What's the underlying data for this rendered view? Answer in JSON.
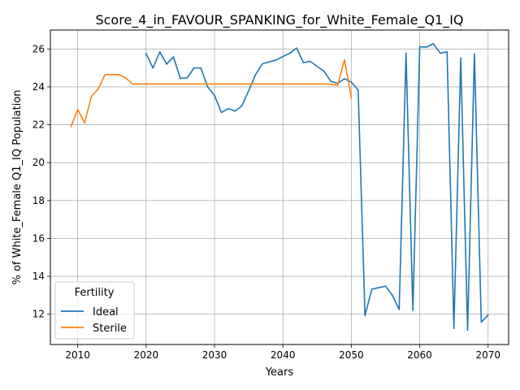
{
  "chart_data": {
    "type": "line",
    "title": "Score_4_in_FAVOUR_SPANKING_for_White_Female_Q1_IQ",
    "xlabel": "Years",
    "ylabel": "% of White_Female Q1_IQ Population",
    "xlim": [
      2006,
      2073
    ],
    "ylim": [
      10.4,
      27.0
    ],
    "xticks": [
      2010,
      2020,
      2030,
      2040,
      2050,
      2060,
      2070
    ],
    "yticks": [
      12,
      14,
      16,
      18,
      20,
      22,
      24,
      26
    ],
    "grid": true,
    "legend": {
      "title": "Fertility",
      "placement": "lower-left"
    },
    "series": [
      {
        "name": "Ideal",
        "color": "#1f77b4",
        "x": [
          2020,
          2021,
          2022,
          2023,
          2024,
          2025,
          2026,
          2027,
          2028,
          2029,
          2030,
          2031,
          2032,
          2033,
          2034,
          2035,
          2036,
          2037,
          2038,
          2039,
          2040,
          2041,
          2042,
          2043,
          2044,
          2045,
          2046,
          2047,
          2048,
          2049,
          2050,
          2051,
          2052,
          2053,
          2054,
          2055,
          2056,
          2057,
          2058,
          2059,
          2060,
          2061,
          2062,
          2063,
          2064,
          2065,
          2066,
          2067,
          2068,
          2069,
          2070
        ],
        "y": [
          25.75,
          25.0,
          25.85,
          25.2,
          25.58,
          24.45,
          24.48,
          25.0,
          25.0,
          24.0,
          23.55,
          22.65,
          22.85,
          22.72,
          23.0,
          23.8,
          24.65,
          25.22,
          25.32,
          25.42,
          25.6,
          25.78,
          26.05,
          25.28,
          25.35,
          25.08,
          24.83,
          24.3,
          24.18,
          24.43,
          24.25,
          23.83,
          11.92,
          13.32,
          13.4,
          13.48,
          13.0,
          12.25,
          25.78,
          12.2,
          26.12,
          26.1,
          26.28,
          25.78,
          25.85,
          11.25,
          25.52,
          11.15,
          25.75,
          11.58,
          11.95
        ]
      },
      {
        "name": "Sterile",
        "color": "#ff7f0e",
        "x": [
          2009,
          2010,
          2011,
          2012,
          2013,
          2014,
          2015,
          2016,
          2017,
          2018,
          2019,
          2020,
          2021,
          2022,
          2023,
          2024,
          2025,
          2026,
          2027,
          2028,
          2029,
          2030,
          2031,
          2032,
          2033,
          2034,
          2035,
          2036,
          2037,
          2038,
          2039,
          2040,
          2041,
          2042,
          2043,
          2044,
          2045,
          2046,
          2047,
          2048,
          2049,
          2050
        ],
        "y": [
          21.9,
          22.8,
          22.1,
          23.5,
          23.9,
          24.65,
          24.65,
          24.65,
          24.48,
          24.15,
          24.15,
          24.15,
          24.15,
          24.15,
          24.15,
          24.15,
          24.15,
          24.15,
          24.15,
          24.15,
          24.15,
          24.15,
          24.15,
          24.15,
          24.15,
          24.15,
          24.15,
          24.15,
          24.15,
          24.15,
          24.15,
          24.15,
          24.15,
          24.15,
          24.15,
          24.15,
          24.15,
          24.15,
          24.15,
          24.08,
          25.43,
          23.42
        ]
      }
    ]
  }
}
